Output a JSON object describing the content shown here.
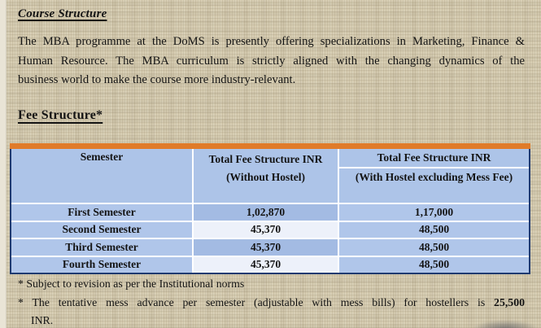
{
  "document": {
    "title": "Course Structure",
    "intro": {
      "line1": "The MBA programme at the DoMS is presently offering specializations in Marketing, Finance &",
      "line2": "Human Resource. The MBA curriculum is strictly aligned with the changing dynamics of the",
      "line3": "business world to make the course more industry-relevant."
    },
    "section_heading": "Fee Structure*"
  },
  "fee_table": {
    "header": {
      "col1": "Semester",
      "col2_line1": "Total Fee Structure INR",
      "col2_line2": "(Without Hostel)",
      "col3_line1": "Total Fee Structure INR",
      "col3_line2": "(With Hostel excluding Mess Fee)"
    },
    "rows": [
      {
        "semester": "First Semester",
        "without_hostel": "1,02,870",
        "with_hostel": "1,17,000"
      },
      {
        "semester": "Second Semester",
        "without_hostel": "45,370",
        "with_hostel": "48,500"
      },
      {
        "semester": "Third Semester",
        "without_hostel": "45,370",
        "with_hostel": "48,500"
      },
      {
        "semester": "Fourth Semester",
        "without_hostel": "45,370",
        "with_hostel": "48,500"
      }
    ]
  },
  "footnotes": {
    "note1": "* Subject to revision as per the Institutional norms",
    "note2_prefix": "* The tentative mess advance per semester (adjustable with mess bills) for hostellers is",
    "note2_amount": "25,500",
    "note2_continuation": "INR."
  },
  "colors": {
    "page_background": "#D6CCB1",
    "accent_orange": "#E07B2A",
    "header_blue": "#ADC4E8",
    "row_blue": "#B0C6EA",
    "row_blue_mid": "#A3BBE3",
    "row_light": "#EDF1FA",
    "table_border": "#1F3A70"
  }
}
